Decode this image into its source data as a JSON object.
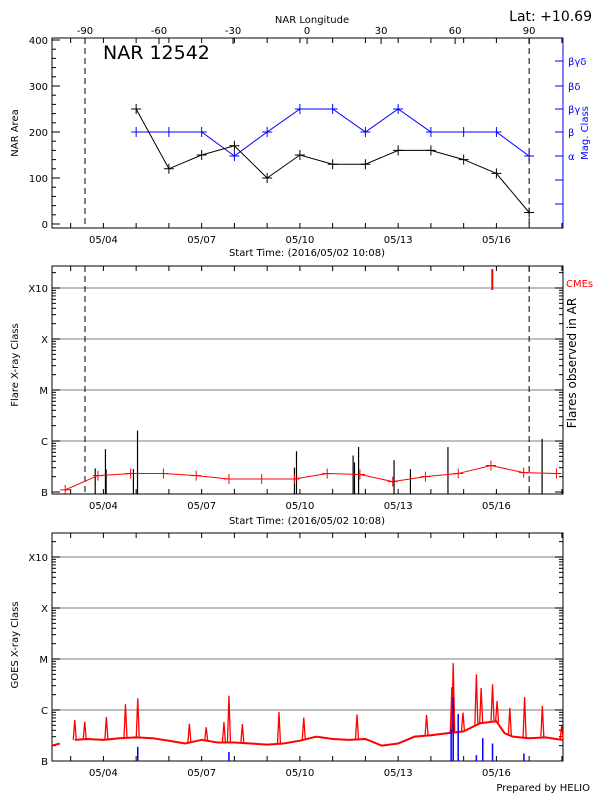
{
  "header": {
    "lat_label": "Lat: +10.69"
  },
  "footer": {
    "credit": "Prepared by HELIO"
  },
  "colors": {
    "axis": "#000000",
    "area": "#000000",
    "mag_class": "#0000ff",
    "flare_avg": "#ff0000",
    "goes": "#ff0000",
    "goes_markers": "#0000ff",
    "grid": "#999999",
    "cme": "#ff0000"
  },
  "time_axis": {
    "xlim": [
      "2016-05-02 10:08",
      "2016-05-18 01:00"
    ],
    "tick_labels": [
      {
        "date": "2016-05-04 00:00",
        "label": "05/04"
      },
      {
        "date": "2016-05-07 00:00",
        "label": "05/07"
      },
      {
        "date": "2016-05-10 00:00",
        "label": "05/10"
      },
      {
        "date": "2016-05-13 00:00",
        "label": "05/13"
      },
      {
        "date": "2016-05-16 00:00",
        "label": "05/16"
      }
    ],
    "xlabel": "Start Time: (2016/05/02 10:08)",
    "limb_crossings": {
      "-90": "2016-05-03 10:30",
      "90": "2016-05-17 00:00"
    }
  },
  "chart_data": [
    {
      "type": "line",
      "title": "NAR 12542",
      "xlabel": "Start Time: (2016/05/02 10:08)",
      "top_xlabel": "NAR Longitude",
      "top_xticks": [
        -90,
        -60,
        -30,
        0,
        30,
        60,
        90
      ],
      "ylabel": "NAR Area",
      "ylim": [
        0,
        400
      ],
      "yticks": [
        0,
        100,
        200,
        300,
        400
      ],
      "y2label": "Mag. Class",
      "y2_categories": [
        "α",
        "β",
        "βγ",
        "βδ",
        "βγδ"
      ],
      "x": [
        "2016-05-05 00:00",
        "2016-05-06 00:00",
        "2016-05-07 00:00",
        "2016-05-08 00:00",
        "2016-05-09 00:00",
        "2016-05-10 00:00",
        "2016-05-11 00:00",
        "2016-05-12 00:00",
        "2016-05-13 00:00",
        "2016-05-14 00:00",
        "2016-05-15 00:00",
        "2016-05-16 00:00",
        "2016-05-17 00:00"
      ],
      "area": [
        250,
        120,
        150,
        170,
        100,
        150,
        130,
        130,
        160,
        160,
        140,
        110,
        25
      ],
      "mag_class": [
        "β",
        "β",
        "β",
        "α",
        "β",
        "βγ",
        "βγ",
        "β",
        "βγ",
        "β",
        "β",
        "β",
        "α"
      ],
      "limb_lines": "dashed at longitude ±90"
    },
    {
      "type": "line",
      "xlabel": "Start Time: (2016/05/02 10:08)",
      "ylabel": "Flare X-ray Class",
      "y2label": "Flares observed in AR",
      "yscale": "log",
      "ylim": [
        "B1.0",
        "X30"
      ],
      "yticks": [
        "B",
        "C",
        "M",
        "X",
        "X10"
      ],
      "grid": true,
      "cme_label": "CMEs",
      "cmes": [
        "2016-05-15 21:00"
      ],
      "daily_level": {
        "x": [
          "2016-05-02 20:00",
          "2016-05-03 20:00",
          "2016-05-04 20:00",
          "2016-05-05 20:00",
          "2016-05-06 20:00",
          "2016-05-07 20:00",
          "2016-05-08 20:00",
          "2016-05-09 20:00",
          "2016-05-10 20:00",
          "2016-05-11 20:00",
          "2016-05-12 20:00",
          "2016-05-13 20:00",
          "2016-05-14 20:00",
          "2016-05-15 20:00",
          "2016-05-16 20:00",
          "2016-05-17 20:00"
        ],
        "values": [
          "B1.1",
          "B2.1",
          "B2.3",
          "B2.3",
          "B2.1",
          "B1.8",
          "B1.8",
          "B1.8",
          "B2.3",
          "B2.2",
          "B1.6",
          "B2.0",
          "B2.3",
          "B3.3",
          "B2.4",
          "B2.3"
        ]
      },
      "flares": [
        {
          "time": "2016-05-03 18:00",
          "class": "B2.9"
        },
        {
          "time": "2016-05-04 01:30",
          "class": "B6.9"
        },
        {
          "time": "2016-05-04 02:00",
          "class": "B2.8"
        },
        {
          "time": "2016-05-04 22:00",
          "class": "B2.8"
        },
        {
          "time": "2016-05-05 01:00",
          "class": "C1.6"
        },
        {
          "time": "2016-05-09 20:00",
          "class": "B3.0"
        },
        {
          "time": "2016-05-09 21:30",
          "class": "B6.3"
        },
        {
          "time": "2016-05-11 15:00",
          "class": "B5.2"
        },
        {
          "time": "2016-05-11 16:00",
          "class": "B3.8"
        },
        {
          "time": "2016-05-11 19:00",
          "class": "B7.6"
        },
        {
          "time": "2016-05-12 21:00",
          "class": "B4.2"
        },
        {
          "time": "2016-05-13 09:00",
          "class": "B2.8"
        },
        {
          "time": "2016-05-14 12:30",
          "class": "B7.6"
        },
        {
          "time": "2016-05-17 09:30",
          "class": "C1.1"
        }
      ]
    },
    {
      "type": "line",
      "ylabel": "GOES X-ray Class",
      "yscale": "log",
      "ylim": [
        "B1.0",
        "X30"
      ],
      "yticks": [
        "B",
        "C",
        "M",
        "X",
        "X10"
      ],
      "grid": true,
      "background": [
        [
          "2016-05-02 10:08",
          "B2.0"
        ],
        [
          "2016-05-02 16:00",
          "B2.2"
        ],
        [
          "2016-05-02 17:00",
          null
        ],
        [
          "2016-05-03 03:00",
          "B2.6"
        ],
        [
          "2016-05-03 12:00",
          "B2.7"
        ],
        [
          "2016-05-04 00:00",
          "B2.6"
        ],
        [
          "2016-05-04 12:00",
          "B2.8"
        ],
        [
          "2016-05-05 00:00",
          "B2.9"
        ],
        [
          "2016-05-05 12:00",
          "B2.8"
        ],
        [
          "2016-05-06 00:00",
          "B2.5"
        ],
        [
          "2016-05-06 12:00",
          "B2.2"
        ],
        [
          "2016-05-07 00:00",
          "B2.6"
        ],
        [
          "2016-05-07 12:00",
          "B2.3"
        ],
        [
          "2016-05-08 00:00",
          "B2.3"
        ],
        [
          "2016-05-08 12:00",
          "B2.2"
        ],
        [
          "2016-05-09 00:00",
          "B2.1"
        ],
        [
          "2016-05-09 12:00",
          "B2.2"
        ],
        [
          "2016-05-10 00:00",
          "B2.5"
        ],
        [
          "2016-05-10 12:00",
          "B3.0"
        ],
        [
          "2016-05-11 00:00",
          "B2.7"
        ],
        [
          "2016-05-11 12:00",
          "B2.6"
        ],
        [
          "2016-05-12 00:00",
          "B2.7"
        ],
        [
          "2016-05-12 12:00",
          "B2.0"
        ],
        [
          "2016-05-13 00:00",
          "B2.2"
        ],
        [
          "2016-05-13 12:00",
          "B3.0"
        ],
        [
          "2016-05-14 00:00",
          "B3.2"
        ],
        [
          "2016-05-14 12:00",
          "B3.5"
        ],
        [
          "2016-05-15 00:00",
          "B3.8"
        ],
        [
          "2016-05-15 12:00",
          "B5.5"
        ],
        [
          "2016-05-16 00:00",
          "B6.0"
        ],
        [
          "2016-05-16 06:00",
          "B3.5"
        ],
        [
          "2016-05-16 12:00",
          "B3.0"
        ],
        [
          "2016-05-17 00:00",
          "B2.8"
        ],
        [
          "2016-05-17 12:00",
          "B2.9"
        ],
        [
          "2016-05-18 00:00",
          "B2.6"
        ],
        [
          "2016-05-18 01:00",
          "B2.7"
        ]
      ],
      "peaks": [
        [
          "2016-05-03 03:00",
          "B6.4"
        ],
        [
          "2016-05-03 10:20",
          "B5.9"
        ],
        [
          "2016-05-04 02:10",
          "B7.3"
        ],
        [
          "2016-05-04 16:10",
          "C1.3"
        ],
        [
          "2016-05-05 01:10",
          "C1.7"
        ],
        [
          "2016-05-06 15:00",
          "B5.4"
        ],
        [
          "2016-05-07 03:20",
          "B4.6"
        ],
        [
          "2016-05-07 16:20",
          "B5.8"
        ],
        [
          "2016-05-07 20:00",
          "C1.9"
        ],
        [
          "2016-05-08 05:50",
          "B5.3"
        ],
        [
          "2016-05-09 08:40",
          "B9.1"
        ],
        [
          "2016-05-10 02:50",
          "B7.1"
        ],
        [
          "2016-05-11 17:50",
          "B8.2"
        ],
        [
          "2016-05-13 20:50",
          "B8.0"
        ],
        [
          "2016-05-14 15:20",
          "C2.8"
        ],
        [
          "2016-05-14 16:20",
          "C8.3"
        ],
        [
          "2016-05-14 23:30",
          "B8.9"
        ],
        [
          "2016-05-15 09:20",
          "C5.0"
        ],
        [
          "2016-05-15 12:50",
          "C2.7"
        ],
        [
          "2016-05-15 21:10",
          "C3.2"
        ],
        [
          "2016-05-16 00:30",
          "C1.5"
        ],
        [
          "2016-05-16 09:50",
          "C1.1"
        ],
        [
          "2016-05-16 20:40",
          "C1.8"
        ],
        [
          "2016-05-17 09:40",
          "C1.2"
        ],
        [
          "2016-05-17 23:50",
          "B4.9"
        ]
      ],
      "markers": [
        [
          "2016-05-05 01:10",
          "B1.9"
        ],
        [
          "2016-05-07 20:00",
          "B1.5"
        ],
        [
          "2016-05-14 14:50",
          "B4.2"
        ],
        [
          "2016-05-14 16:20",
          "C1.8"
        ],
        [
          "2016-05-14 20:00",
          "B8.3"
        ],
        [
          "2016-05-15 09:20",
          "B1.3"
        ],
        [
          "2016-05-15 14:00",
          "B2.8"
        ],
        [
          "2016-05-15 21:10",
          "B2.2"
        ],
        [
          "2016-05-16 20:10",
          "B1.4"
        ],
        [
          "2016-05-17 09:30",
          "B1.0"
        ]
      ]
    }
  ]
}
